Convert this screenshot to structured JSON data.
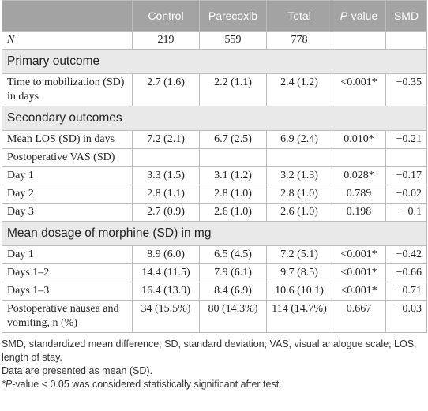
{
  "table": {
    "columns": [
      "Control",
      "Parecoxib",
      "Total",
      "P-value",
      "SMD"
    ],
    "rows": [
      {
        "label": "N",
        "cells": [
          "219",
          "559",
          "778"
        ]
      },
      {
        "section": "Primary outcome"
      },
      {
        "label": "Time to mobilization (SD) in days",
        "cells": [
          "2.7 (1.6)",
          "2.2 (1.1)",
          "2.4 (1.2)",
          "<0.001*",
          "−0.35"
        ]
      },
      {
        "section": "Secondary outcomes"
      },
      {
        "label": "Mean LOS (SD) in days",
        "cells": [
          "7.2 (2.1)",
          "6.7 (2.5)",
          "6.9 (2.4)",
          "0.010*",
          "−0.21"
        ]
      },
      {
        "label": "Postoperative VAS (SD)",
        "cells": []
      },
      {
        "label": "Day 1",
        "cells": [
          "3.3 (1.5)",
          "3.1 (1.2)",
          "3.2 (1.3)",
          "0.028*",
          "−0.17"
        ]
      },
      {
        "label": "Day 2",
        "cells": [
          "2.8 (1.1)",
          "2.8 (1.0)",
          "2.8 (1.0)",
          "0.789",
          "−0.02"
        ]
      },
      {
        "label": "Day 3",
        "cells": [
          "2.7 (0.9)",
          "2.6 (1.0)",
          "2.6 (1.0)",
          "0.198",
          "−0.1"
        ]
      },
      {
        "section": "Mean dosage of morphine (SD) in mg"
      },
      {
        "label": "Day 1",
        "cells": [
          "8.9 (6.0)",
          "6.5 (4.5)",
          "7.2 (5.1)",
          "<0.001*",
          "−0.42"
        ]
      },
      {
        "label": "Days 1–2",
        "cells": [
          "14.4 (11.5)",
          "7.9 (6.1)",
          "9.7 (8.5)",
          "<0.001*",
          "−0.66"
        ]
      },
      {
        "label": "Days 1–3",
        "cells": [
          "16.4 (13.9)",
          "8.4 (6.9)",
          "10.6 (10.1)",
          "<0.001*",
          "−0.71"
        ]
      },
      {
        "label": "Postoperative nausea and vomiting, n (%)",
        "cells": [
          "34 (15.5%)",
          "80 (14.3%)",
          "114 (14.7%)",
          "0.667",
          "−0.03"
        ]
      }
    ],
    "notes": [
      "SMD, standardized mean difference; SD, standard deviation; VAS, visual analogue scale; LOS, length of stay.",
      "Data are presented as mean (SD).",
      "*P-value < 0.05 was considered statistically significant after test."
    ]
  }
}
